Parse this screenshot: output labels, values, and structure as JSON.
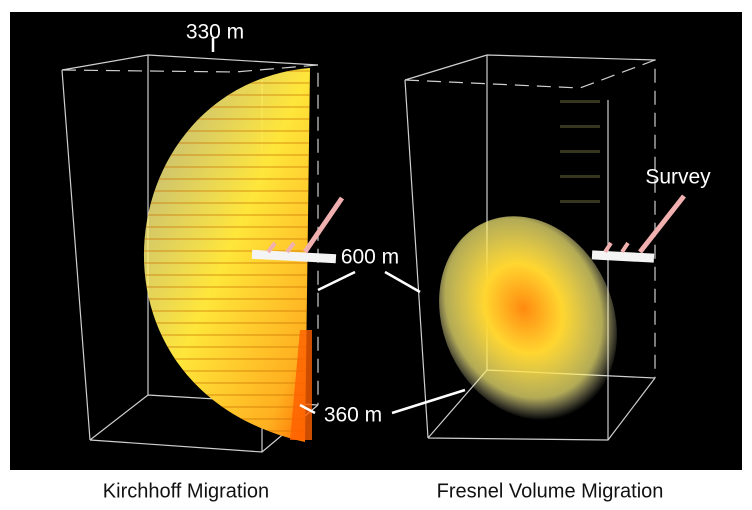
{
  "figure": {
    "labels": {
      "top_width": "330 m",
      "depth": "600 m",
      "bottom_width": "360 m",
      "survey": "Survey"
    },
    "captions": [
      "Kirchhoff Migration",
      "Fresnel Volume Migration"
    ]
  }
}
